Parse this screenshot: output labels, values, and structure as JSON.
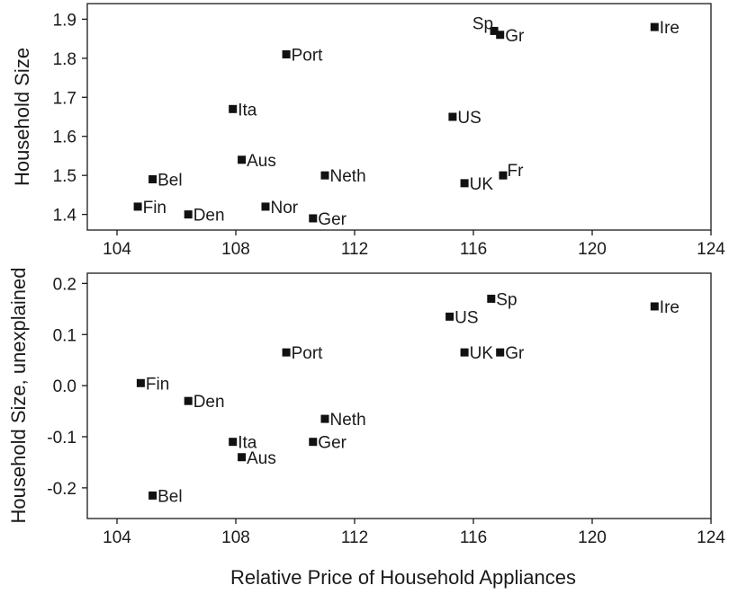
{
  "chart_data": [
    {
      "type": "scatter",
      "title": "",
      "xlabel": "",
      "ylabel": "Household Size",
      "xlim": [
        103,
        124
      ],
      "ylim": [
        1.36,
        1.94
      ],
      "xticks": [
        104,
        108,
        112,
        116,
        120,
        124
      ],
      "xtick_labels": [
        "104",
        "108",
        "112",
        "116",
        "120",
        "124"
      ],
      "yticks": [
        1.4,
        1.5,
        1.6,
        1.7,
        1.8,
        1.9
      ],
      "ytick_labels": [
        "1.4",
        "1.5",
        "1.6",
        "1.7",
        "1.8",
        "1.9"
      ],
      "grid": false,
      "points": [
        {
          "label": "Sp",
          "x": 116.7,
          "y": 1.87,
          "label_pos": "above-left"
        },
        {
          "label": "Gr",
          "x": 116.9,
          "y": 1.86,
          "label_pos": "right"
        },
        {
          "label": "Ire",
          "x": 122.1,
          "y": 1.88,
          "label_pos": "right"
        },
        {
          "label": "Port",
          "x": 109.7,
          "y": 1.81,
          "label_pos": "right"
        },
        {
          "label": "Ita",
          "x": 107.9,
          "y": 1.67,
          "label_pos": "right"
        },
        {
          "label": "US",
          "x": 115.3,
          "y": 1.65,
          "label_pos": "right"
        },
        {
          "label": "Aus",
          "x": 108.2,
          "y": 1.54,
          "label_pos": "right"
        },
        {
          "label": "Bel",
          "x": 105.2,
          "y": 1.49,
          "label_pos": "right"
        },
        {
          "label": "Neth",
          "x": 111.0,
          "y": 1.5,
          "label_pos": "right"
        },
        {
          "label": "Fr",
          "x": 117.0,
          "y": 1.5,
          "label_pos": "above-right"
        },
        {
          "label": "UK",
          "x": 115.7,
          "y": 1.48,
          "label_pos": "right"
        },
        {
          "label": "Fin",
          "x": 104.7,
          "y": 1.42,
          "label_pos": "right"
        },
        {
          "label": "Nor",
          "x": 109.0,
          "y": 1.42,
          "label_pos": "right"
        },
        {
          "label": "Den",
          "x": 106.4,
          "y": 1.4,
          "label_pos": "right"
        },
        {
          "label": "Ger",
          "x": 110.6,
          "y": 1.39,
          "label_pos": "right"
        }
      ]
    },
    {
      "type": "scatter",
      "title": "",
      "xlabel": "Relative Price of Household Appliances",
      "ylabel": "Household Size, unexplained",
      "xlim": [
        103,
        124
      ],
      "ylim": [
        -0.26,
        0.22
      ],
      "xticks": [
        104,
        108,
        112,
        116,
        120,
        124
      ],
      "xtick_labels": [
        "104",
        "108",
        "112",
        "116",
        "120",
        "124"
      ],
      "yticks": [
        -0.2,
        -0.1,
        0.0,
        0.1,
        0.2
      ],
      "ytick_labels": [
        "-0.2",
        "-0.1",
        "0.0",
        "0.1",
        "0.2"
      ],
      "grid": false,
      "points": [
        {
          "label": "Sp",
          "x": 116.6,
          "y": 0.17,
          "label_pos": "right"
        },
        {
          "label": "Ire",
          "x": 122.1,
          "y": 0.155,
          "label_pos": "right"
        },
        {
          "label": "US",
          "x": 115.2,
          "y": 0.135,
          "label_pos": "right"
        },
        {
          "label": "UK",
          "x": 115.7,
          "y": 0.065,
          "label_pos": "right"
        },
        {
          "label": "Gr",
          "x": 116.9,
          "y": 0.065,
          "label_pos": "right"
        },
        {
          "label": "Port",
          "x": 109.7,
          "y": 0.065,
          "label_pos": "right"
        },
        {
          "label": "Fin",
          "x": 104.8,
          "y": 0.005,
          "label_pos": "right"
        },
        {
          "label": "Den",
          "x": 106.4,
          "y": -0.03,
          "label_pos": "right"
        },
        {
          "label": "Neth",
          "x": 111.0,
          "y": -0.065,
          "label_pos": "right"
        },
        {
          "label": "Ita",
          "x": 107.9,
          "y": -0.11,
          "label_pos": "right"
        },
        {
          "label": "Ger",
          "x": 110.6,
          "y": -0.11,
          "label_pos": "right"
        },
        {
          "label": "Aus",
          "x": 108.2,
          "y": -0.14,
          "label_pos": "right"
        },
        {
          "label": "Bel",
          "x": 105.2,
          "y": -0.215,
          "label_pos": "right"
        }
      ]
    }
  ]
}
